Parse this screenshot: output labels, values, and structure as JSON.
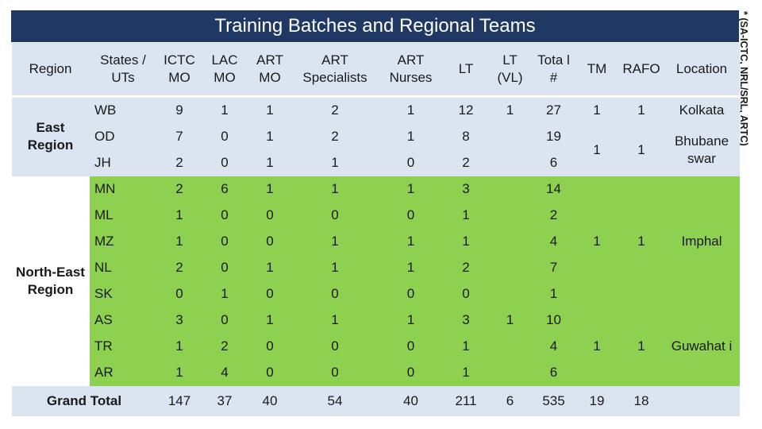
{
  "title": "Training Batches and Regional Teams",
  "side_note": "* (SA-ICTC, NRL/SRL, ARTC)",
  "headers": {
    "region": "Region",
    "states": "States / UTs",
    "ictc": "ICTC MO",
    "lac": "LAC MO",
    "art_mo": "ART MO",
    "art_spec": "ART Specialists",
    "art_nurses": "ART Nurses",
    "lt": "LT",
    "lt_vl": "LT (VL)",
    "total": "Tota l #",
    "tm": "TM",
    "rafo": "RAFO",
    "location": "Location"
  },
  "regions": {
    "east": "East Region",
    "northeast": "North-East Region"
  },
  "rows": [
    {
      "state": "WB",
      "ictc": "9",
      "lac": "1",
      "art_mo": "1",
      "art_spec": "2",
      "art_nurses": "1",
      "lt": "12",
      "lt_vl": "1",
      "total": "27"
    },
    {
      "state": "OD",
      "ictc": "7",
      "lac": "0",
      "art_mo": "1",
      "art_spec": "2",
      "art_nurses": "1",
      "lt": "8",
      "lt_vl": "",
      "total": "19"
    },
    {
      "state": "JH",
      "ictc": "2",
      "lac": "0",
      "art_mo": "1",
      "art_spec": "1",
      "art_nurses": "0",
      "lt": "2",
      "lt_vl": "",
      "total": "6"
    },
    {
      "state": "MN",
      "ictc": "2",
      "lac": "6",
      "art_mo": "1",
      "art_spec": "1",
      "art_nurses": "1",
      "lt": "3",
      "lt_vl": "",
      "total": "14"
    },
    {
      "state": "ML",
      "ictc": "1",
      "lac": "0",
      "art_mo": "0",
      "art_spec": "0",
      "art_nurses": "0",
      "lt": "1",
      "lt_vl": "",
      "total": "2"
    },
    {
      "state": "MZ",
      "ictc": "1",
      "lac": "0",
      "art_mo": "0",
      "art_spec": "1",
      "art_nurses": "1",
      "lt": "1",
      "lt_vl": "",
      "total": "4"
    },
    {
      "state": "NL",
      "ictc": "2",
      "lac": "0",
      "art_mo": "1",
      "art_spec": "1",
      "art_nurses": "1",
      "lt": "2",
      "lt_vl": "",
      "total": "7"
    },
    {
      "state": "SK",
      "ictc": "0",
      "lac": "1",
      "art_mo": "0",
      "art_spec": "0",
      "art_nurses": "0",
      "lt": "0",
      "lt_vl": "",
      "total": "1"
    },
    {
      "state": "AS",
      "ictc": "3",
      "lac": "0",
      "art_mo": "1",
      "art_spec": "1",
      "art_nurses": "1",
      "lt": "3",
      "lt_vl": "1",
      "total": "10"
    },
    {
      "state": "TR",
      "ictc": "1",
      "lac": "2",
      "art_mo": "0",
      "art_spec": "0",
      "art_nurses": "0",
      "lt": "1",
      "lt_vl": "",
      "total": "4"
    },
    {
      "state": "AR",
      "ictc": "1",
      "lac": "4",
      "art_mo": "0",
      "art_spec": "0",
      "art_nurses": "0",
      "lt": "1",
      "lt_vl": "",
      "total": "6"
    }
  ],
  "teams": {
    "kolkata": {
      "tm": "1",
      "rafo": "1",
      "location": "Kolkata"
    },
    "bhubaneswar": {
      "tm": "1",
      "rafo": "1",
      "location": "Bhubane swar"
    },
    "imphal": {
      "tm": "1",
      "rafo": "1",
      "location": "Imphal"
    },
    "guwahati": {
      "tm": "1",
      "rafo": "1",
      "location": "Guwahat i"
    }
  },
  "grand_total": {
    "label": "Grand Total",
    "ictc": "147",
    "lac": "37",
    "art_mo": "40",
    "art_spec": "54",
    "art_nurses": "40",
    "lt": "211",
    "lt_vl": "6",
    "total": "535",
    "tm": "19",
    "rafo": "18"
  },
  "colors": {
    "header_bg": "#1f3864",
    "east_bg": "#dbe5f1",
    "northeast_bg": "#8ed04f"
  }
}
